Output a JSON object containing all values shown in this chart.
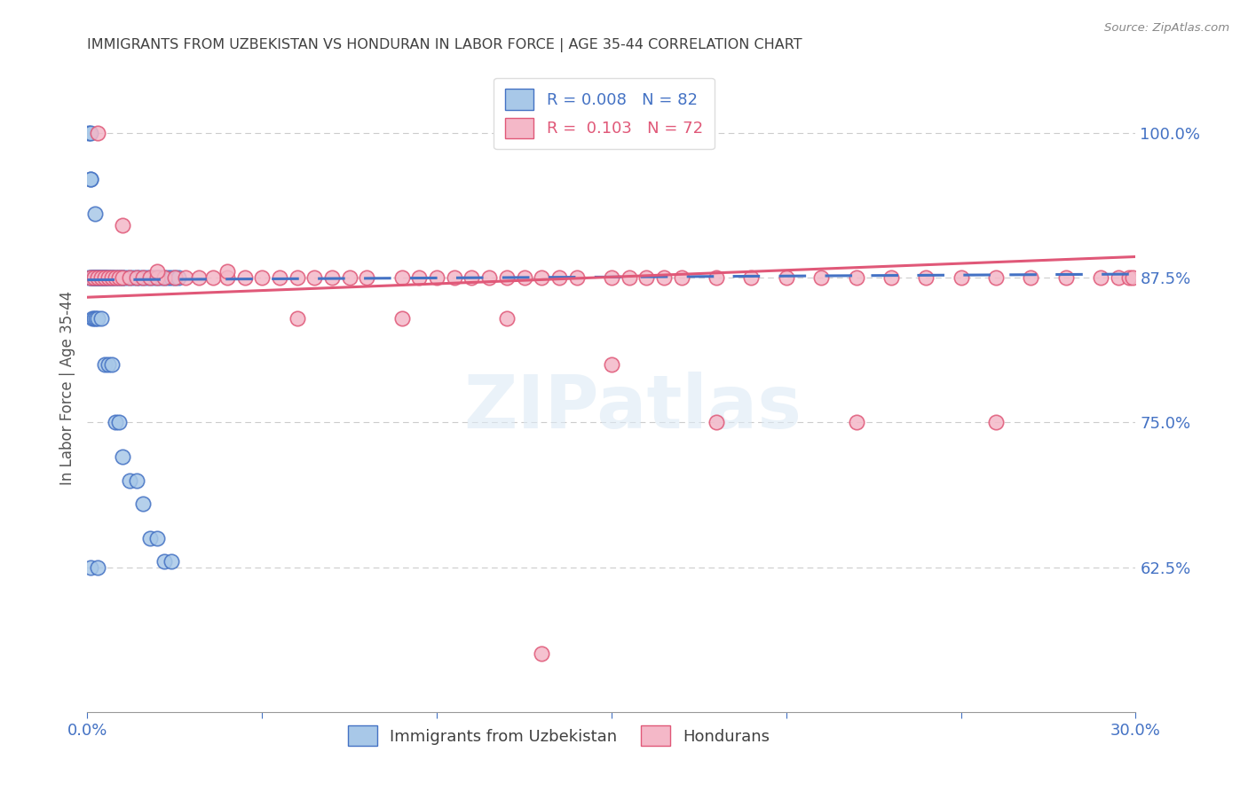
{
  "title": "IMMIGRANTS FROM UZBEKISTAN VS HONDURAN IN LABOR FORCE | AGE 35-44 CORRELATION CHART",
  "source": "Source: ZipAtlas.com",
  "ylabel": "In Labor Force | Age 35-44",
  "ytick_labels": [
    "62.5%",
    "75.0%",
    "87.5%",
    "100.0%"
  ],
  "ytick_values": [
    0.625,
    0.75,
    0.875,
    1.0
  ],
  "xlim": [
    0.0,
    0.3
  ],
  "ylim": [
    0.5,
    1.06
  ],
  "legend_label1": "Immigrants from Uzbekistan",
  "legend_label2": "Hondurans",
  "R1": 0.008,
  "N1": 82,
  "R2": 0.103,
  "N2": 72,
  "color_uzbek": "#a8c8e8",
  "color_honduran": "#f4b8c8",
  "color_uzbek_line": "#4472c4",
  "color_honduran_line": "#e05878",
  "color_axis_labels": "#4472c4",
  "color_title": "#404040",
  "background": "#ffffff",
  "watermark": "ZIPatlas",
  "uzbek_x": [
    0.0005,
    0.0008,
    0.001,
    0.001,
    0.0012,
    0.0015,
    0.0015,
    0.0018,
    0.002,
    0.002,
    0.002,
    0.002,
    0.0022,
    0.0025,
    0.0025,
    0.003,
    0.003,
    0.003,
    0.003,
    0.003,
    0.0032,
    0.0035,
    0.004,
    0.004,
    0.004,
    0.0042,
    0.0045,
    0.005,
    0.005,
    0.005,
    0.005,
    0.0052,
    0.006,
    0.006,
    0.006,
    0.007,
    0.007,
    0.007,
    0.008,
    0.008,
    0.009,
    0.009,
    0.01,
    0.01,
    0.011,
    0.012,
    0.013,
    0.014,
    0.015,
    0.016,
    0.017,
    0.018,
    0.019,
    0.02,
    0.021,
    0.022,
    0.023,
    0.024,
    0.025,
    0.026,
    0.0005,
    0.001,
    0.0015,
    0.002,
    0.0025,
    0.003,
    0.004,
    0.005,
    0.006,
    0.007,
    0.008,
    0.009,
    0.01,
    0.012,
    0.014,
    0.016,
    0.018,
    0.02,
    0.022,
    0.024,
    0.001,
    0.003
  ],
  "uzbek_y": [
    0.875,
    0.96,
    0.96,
    0.875,
    0.875,
    0.875,
    0.875,
    0.875,
    0.875,
    0.875,
    0.875,
    0.875,
    0.93,
    0.875,
    0.875,
    0.875,
    0.875,
    0.875,
    0.875,
    0.875,
    0.875,
    0.875,
    0.875,
    0.875,
    0.875,
    0.875,
    0.875,
    0.875,
    0.875,
    0.875,
    0.875,
    0.875,
    0.875,
    0.875,
    0.875,
    0.875,
    0.875,
    0.875,
    0.875,
    0.875,
    0.875,
    0.875,
    0.875,
    0.875,
    0.875,
    0.875,
    0.875,
    0.875,
    0.875,
    0.875,
    0.875,
    0.875,
    0.875,
    0.875,
    0.875,
    0.875,
    0.875,
    0.875,
    0.875,
    0.875,
    1.0,
    1.0,
    0.84,
    0.84,
    0.84,
    0.84,
    0.84,
    0.8,
    0.8,
    0.8,
    0.75,
    0.75,
    0.72,
    0.7,
    0.7,
    0.68,
    0.65,
    0.65,
    0.63,
    0.63,
    0.625,
    0.625
  ],
  "honduran_x": [
    0.001,
    0.002,
    0.003,
    0.004,
    0.005,
    0.006,
    0.007,
    0.008,
    0.009,
    0.01,
    0.012,
    0.014,
    0.016,
    0.018,
    0.02,
    0.022,
    0.025,
    0.028,
    0.032,
    0.036,
    0.04,
    0.045,
    0.05,
    0.055,
    0.06,
    0.065,
    0.07,
    0.075,
    0.08,
    0.09,
    0.095,
    0.1,
    0.105,
    0.11,
    0.115,
    0.12,
    0.125,
    0.13,
    0.135,
    0.14,
    0.15,
    0.155,
    0.16,
    0.165,
    0.17,
    0.18,
    0.19,
    0.2,
    0.21,
    0.22,
    0.23,
    0.24,
    0.25,
    0.26,
    0.27,
    0.28,
    0.29,
    0.295,
    0.298,
    0.299,
    0.003,
    0.01,
    0.02,
    0.04,
    0.06,
    0.09,
    0.12,
    0.15,
    0.18,
    0.22,
    0.26,
    0.13
  ],
  "honduran_y": [
    0.875,
    0.875,
    0.875,
    0.875,
    0.875,
    0.875,
    0.875,
    0.875,
    0.875,
    0.875,
    0.875,
    0.875,
    0.875,
    0.875,
    0.875,
    0.875,
    0.875,
    0.875,
    0.875,
    0.875,
    0.875,
    0.875,
    0.875,
    0.875,
    0.875,
    0.875,
    0.875,
    0.875,
    0.875,
    0.875,
    0.875,
    0.875,
    0.875,
    0.875,
    0.875,
    0.875,
    0.875,
    0.875,
    0.875,
    0.875,
    0.875,
    0.875,
    0.875,
    0.875,
    0.875,
    0.875,
    0.875,
    0.875,
    0.875,
    0.875,
    0.875,
    0.875,
    0.875,
    0.875,
    0.875,
    0.875,
    0.875,
    0.875,
    0.875,
    0.875,
    1.0,
    0.92,
    0.88,
    0.88,
    0.84,
    0.84,
    0.84,
    0.8,
    0.75,
    0.75,
    0.75,
    0.55
  ]
}
